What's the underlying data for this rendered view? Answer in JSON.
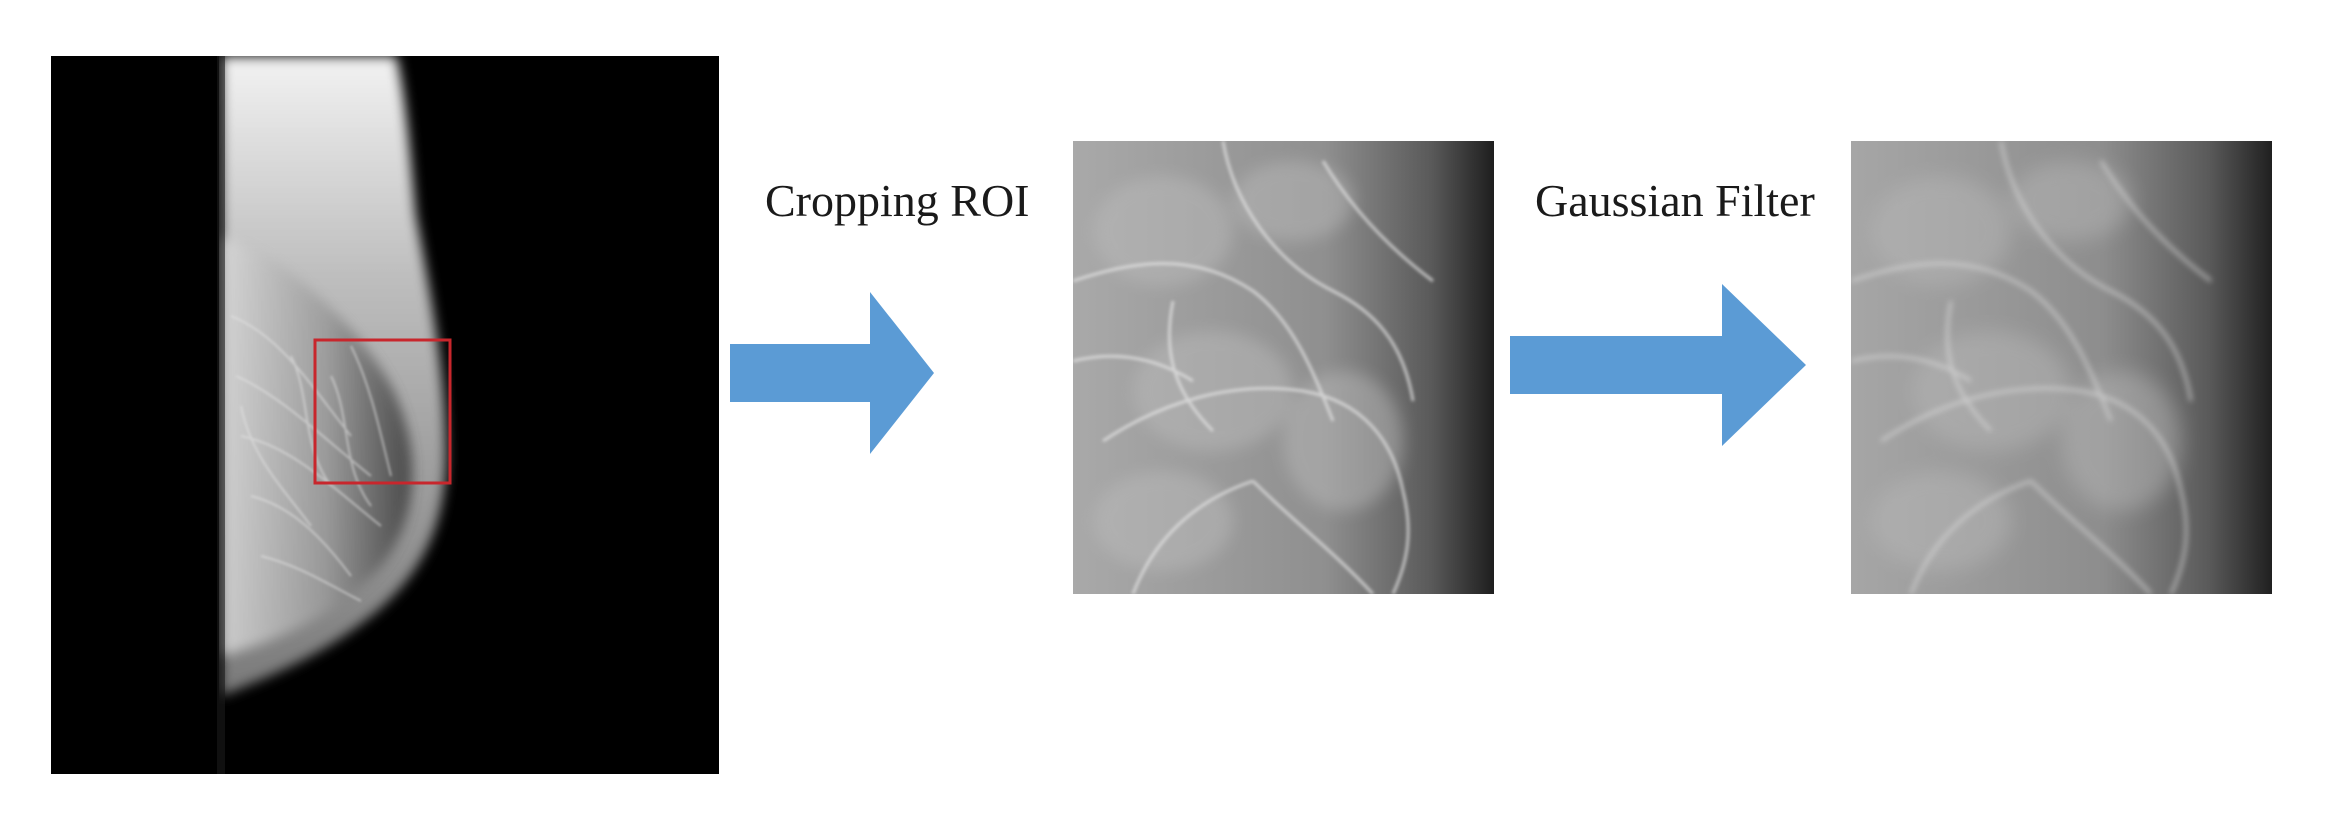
{
  "steps": [
    {
      "label": "Cropping ROI"
    },
    {
      "label": "Gaussian Filter"
    }
  ],
  "colors": {
    "arrow": "#5b9bd5",
    "roi_box": "#c8262c",
    "background": "#ffffff"
  }
}
